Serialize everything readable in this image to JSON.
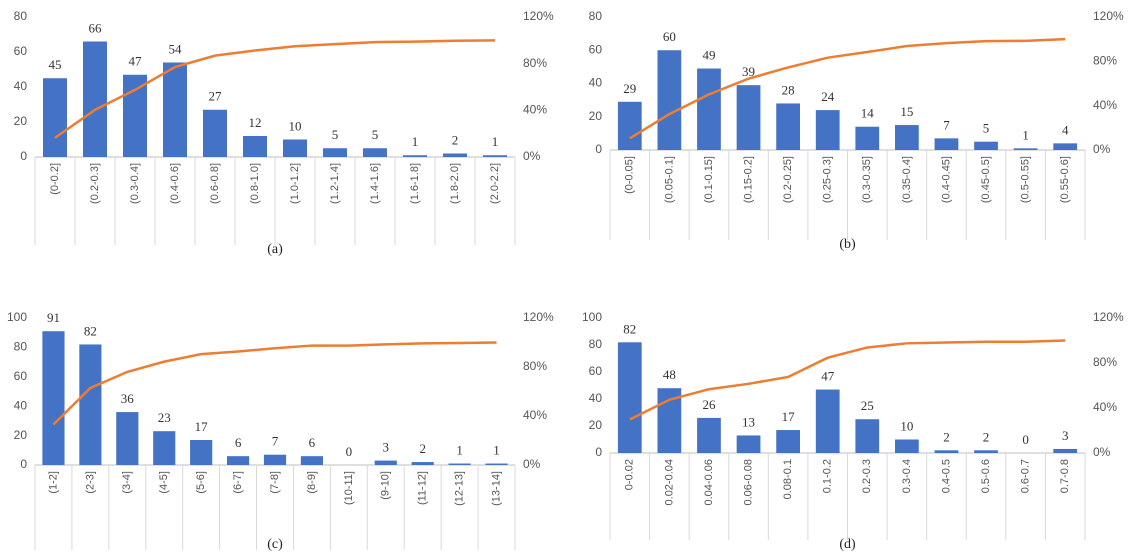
{
  "chart_data": [
    {
      "type": "bar",
      "title": "(a)",
      "categories": [
        "(0-0.2]",
        "(0.2-0.3]",
        "(0.3-0.4]",
        "(0.4-0.6]",
        "(0.6-0.8]",
        "(0.8-1.0]",
        "(1.0-1.2]",
        "(1.2-1.4]",
        "(1.4-1.6]",
        "(1.6-1.8]",
        "(1.8-2.0]",
        "(2.0-2.2]"
      ],
      "series": [
        {
          "type": "bar",
          "color": "#4472c4",
          "values": [
            45,
            66,
            47,
            54,
            27,
            12,
            10,
            5,
            5,
            1,
            2,
            1
          ]
        },
        {
          "type": "line",
          "color": "#ed7d31",
          "axis": "y2",
          "values": [
            16.4,
            40.4,
            57.5,
            77.1,
            86.9,
            91.3,
            94.9,
            96.7,
            98.5,
            98.9,
            99.6,
            100
          ]
        }
      ],
      "ylim": [
        0,
        80
      ],
      "yticks": [
        0,
        20,
        40,
        60,
        80
      ],
      "y2lim": [
        0,
        120
      ],
      "y2ticks": [
        {
          "value": 0,
          "label": "0%"
        },
        {
          "value": 40,
          "label": "40%"
        },
        {
          "value": 80,
          "label": "80%"
        },
        {
          "value": 120,
          "label": "120%"
        }
      ]
    },
    {
      "type": "bar",
      "title": "(b)",
      "categories": [
        "(0-0.05]",
        "(0.05-0.1]",
        "(0.1-0.15]",
        "(0.15-0.2]",
        "(0.2-0.25]",
        "(0.25-0.3]",
        "(0.3-0.35]",
        "(0.35-0.4]",
        "(0.4-0.45]",
        "(0.45-0.5]",
        "(0.5-0.55]",
        "(0.55-0.6]"
      ],
      "series": [
        {
          "type": "bar",
          "color": "#4472c4",
          "values": [
            29,
            60,
            49,
            39,
            28,
            24,
            14,
            15,
            7,
            5,
            1,
            4
          ]
        },
        {
          "type": "line",
          "color": "#ed7d31",
          "axis": "y2",
          "values": [
            10.5,
            32.4,
            50.2,
            64.4,
            74.5,
            83.3,
            88.4,
            93.8,
            96.4,
            98.2,
            98.5,
            100
          ]
        }
      ],
      "ylim": [
        0,
        80
      ],
      "yticks": [
        0,
        20,
        40,
        60,
        80
      ],
      "y2lim": [
        0,
        120
      ],
      "y2ticks": [
        {
          "value": 0,
          "label": "0%"
        },
        {
          "value": 40,
          "label": "40%"
        },
        {
          "value": 80,
          "label": "80%"
        },
        {
          "value": 120,
          "label": "120%"
        }
      ]
    },
    {
      "type": "bar",
      "title": "(c)",
      "categories": [
        "(1-2]",
        "(2-3]",
        "(3-4]",
        "(4-5]",
        "(5-6]",
        "(6-7]",
        "(7-8]",
        "(8-9]",
        "(10-11]",
        "(9-10]",
        "(11-12]",
        "(12-13]",
        "(13-14]"
      ],
      "series": [
        {
          "type": "bar",
          "color": "#4472c4",
          "values": [
            91,
            82,
            36,
            23,
            17,
            6,
            7,
            6,
            0,
            3,
            2,
            1,
            1
          ]
        },
        {
          "type": "line",
          "color": "#ed7d31",
          "axis": "y2",
          "values": [
            33.1,
            62.9,
            76,
            84.4,
            90.5,
            92.7,
            95.3,
            97.5,
            97.5,
            98.5,
            99.3,
            99.6,
            100
          ]
        }
      ],
      "ylim": [
        0,
        100
      ],
      "yticks": [
        0,
        20,
        40,
        60,
        80,
        100
      ],
      "y2lim": [
        0,
        120
      ],
      "y2ticks": [
        {
          "value": 0,
          "label": "0%"
        },
        {
          "value": 40,
          "label": "40%"
        },
        {
          "value": 80,
          "label": "80%"
        },
        {
          "value": 120,
          "label": "120%"
        }
      ]
    },
    {
      "type": "bar",
      "title": "(d)",
      "categories": [
        "0-0.02",
        "0.02-0.04",
        "0.04-0.06",
        "0.06-0.08",
        "0.08-0.1",
        "0.1-0.2",
        "0.2-0.3",
        "0.3-0.4",
        "0.4-0.5",
        "0.5-0.6",
        "0.6-0.7",
        "0.7-0.8"
      ],
      "series": [
        {
          "type": "bar",
          "color": "#4472c4",
          "values": [
            82,
            48,
            26,
            13,
            17,
            47,
            25,
            10,
            2,
            2,
            0,
            3
          ]
        },
        {
          "type": "line",
          "color": "#ed7d31",
          "axis": "y2",
          "values": [
            29.8,
            47.3,
            56.7,
            61.5,
            67.6,
            84.7,
            93.8,
            97.5,
            98.2,
            98.9,
            98.9,
            100
          ]
        }
      ],
      "ylim": [
        0,
        100
      ],
      "yticks": [
        0,
        20,
        40,
        60,
        80,
        100
      ],
      "y2lim": [
        0,
        120
      ],
      "y2ticks": [
        {
          "value": 0,
          "label": "0%"
        },
        {
          "value": 40,
          "label": "40%"
        },
        {
          "value": 80,
          "label": "80%"
        },
        {
          "value": 120,
          "label": "120%"
        }
      ]
    }
  ]
}
